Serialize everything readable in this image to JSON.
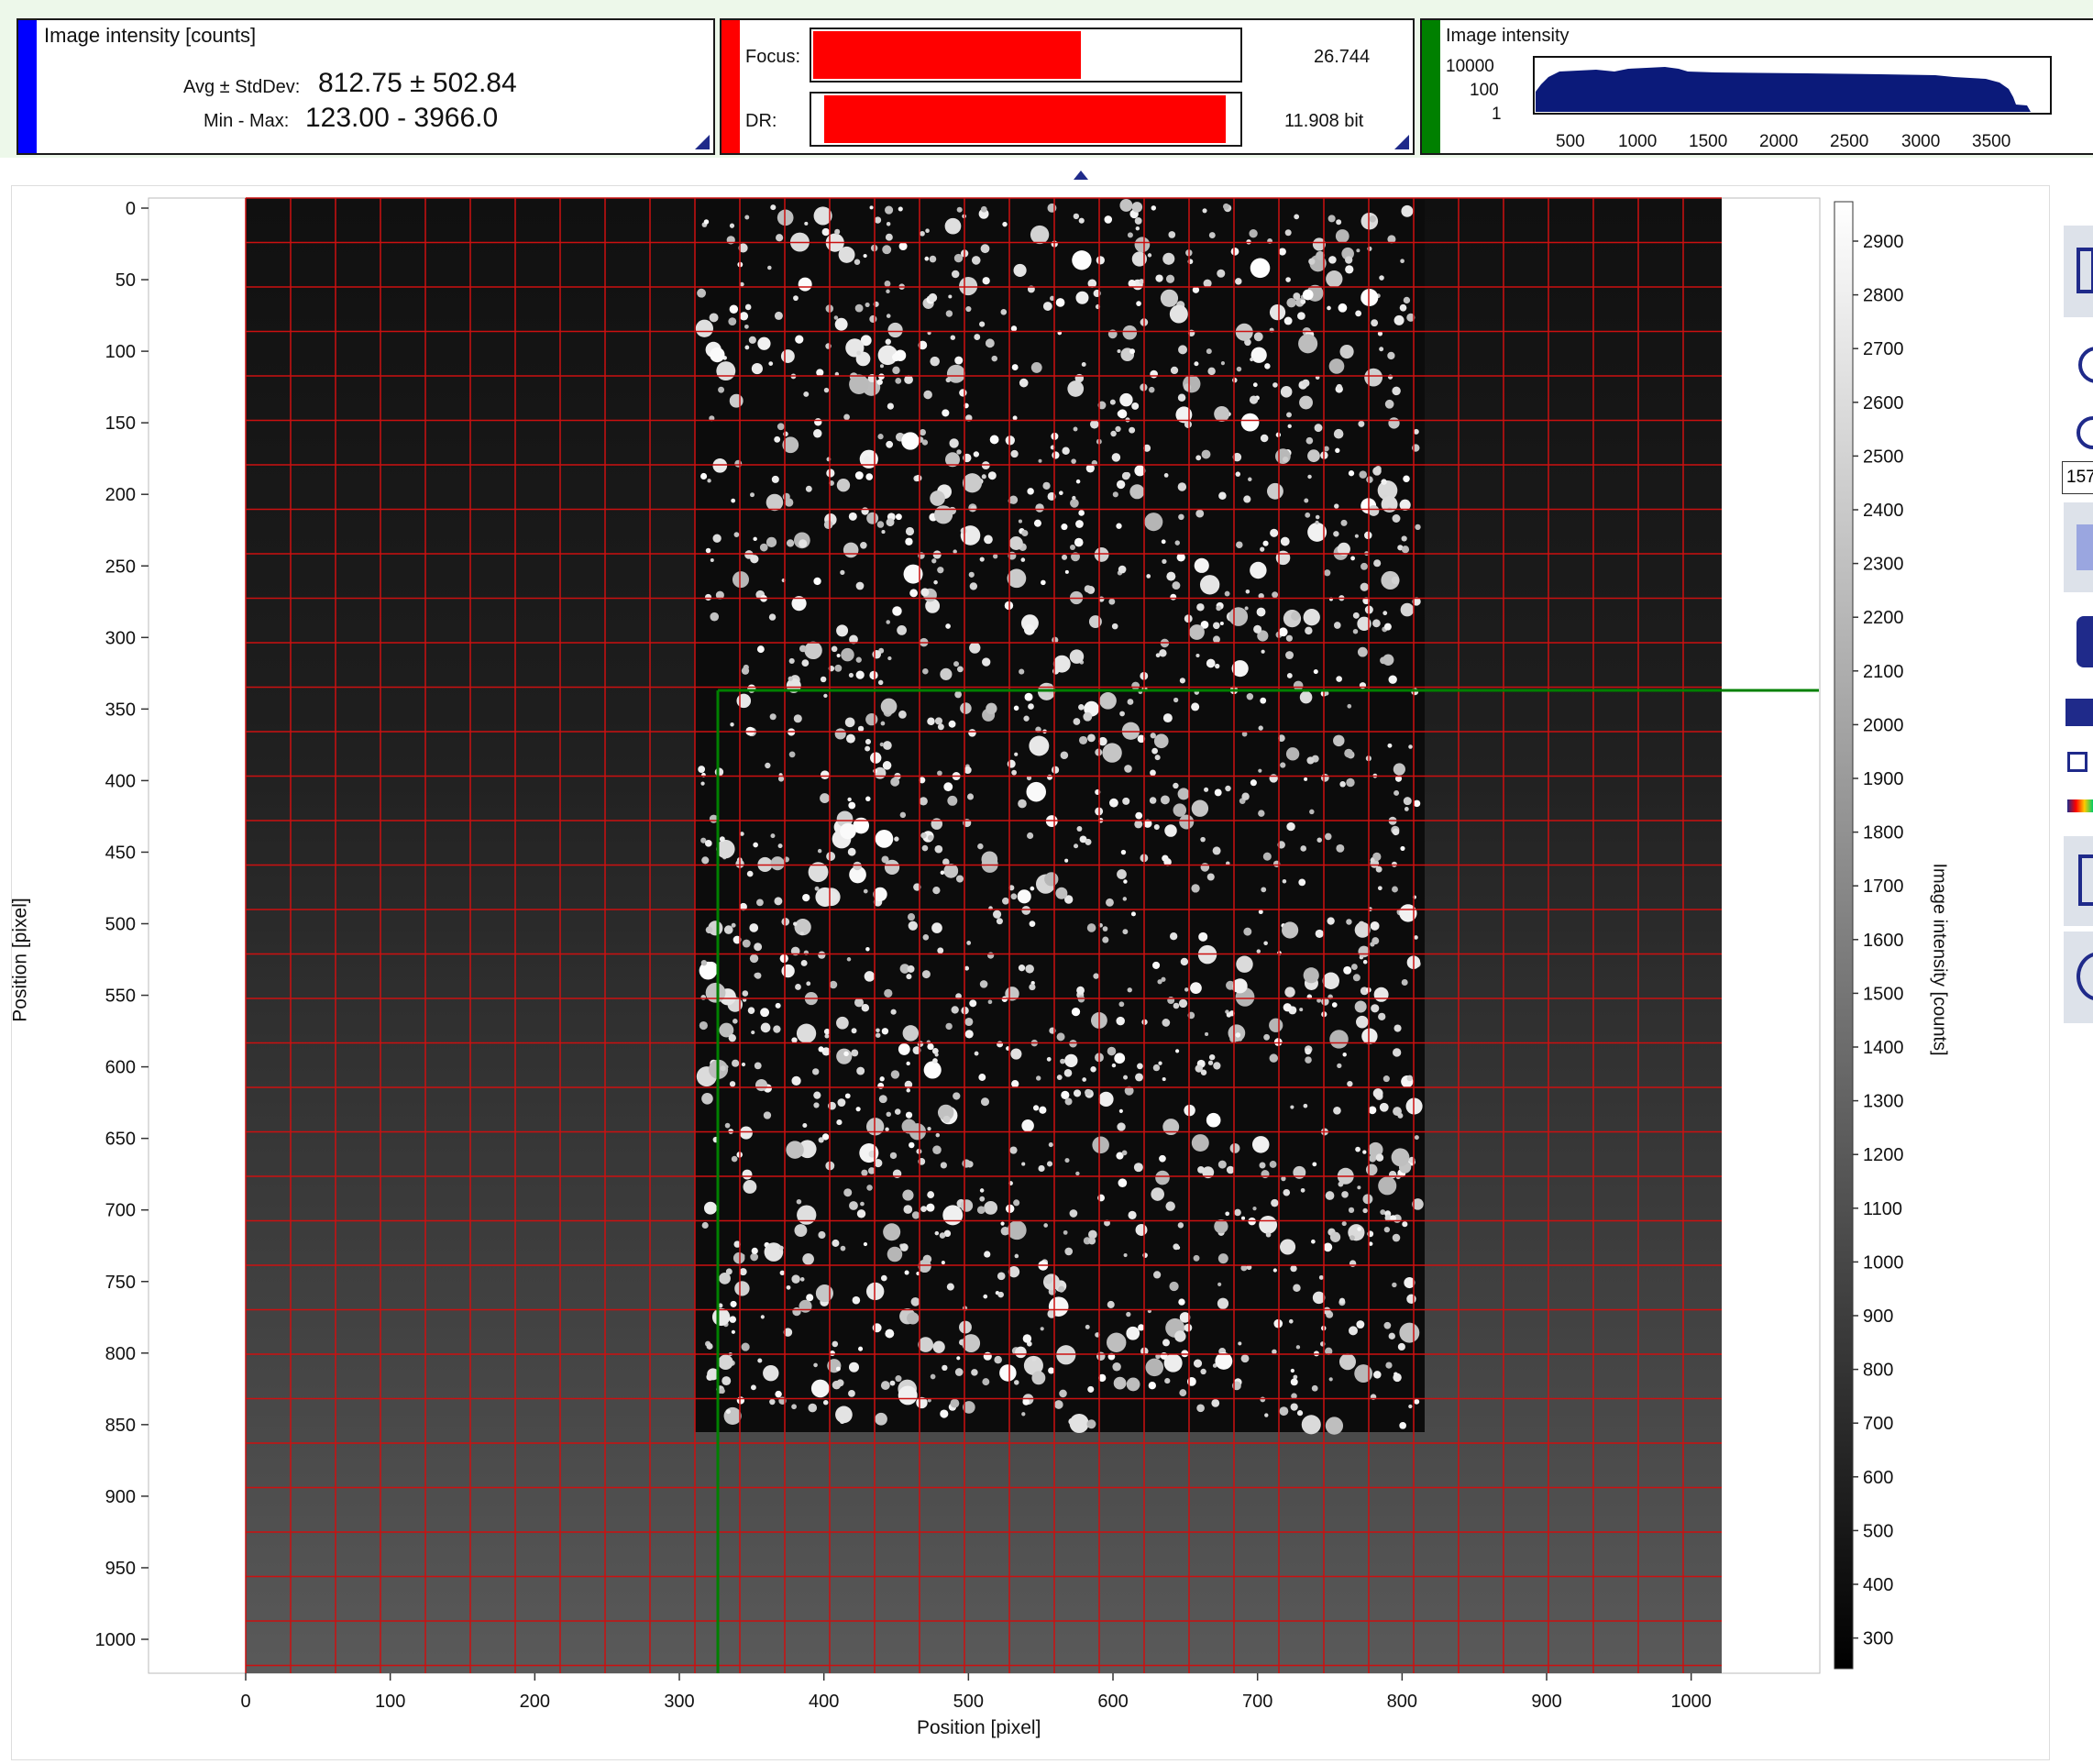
{
  "stats_panel": {
    "title": "Image intensity [counts]",
    "avg_label": "Avg ± StdDev:",
    "avg_value": "812.75 ± 502.84",
    "minmax_label": "Min - Max:",
    "minmax_value": "123.00 - 3966.0",
    "accent_color": "#0000ff"
  },
  "focus_panel": {
    "focus_label": "Focus:",
    "focus_value": "26.744",
    "focus_fraction": 0.63,
    "dr_label": "DR:",
    "dr_value": "11.908 bit",
    "dr_fraction": 0.97,
    "accent_color": "#ff0000"
  },
  "histogram_panel": {
    "title": "Image intensity",
    "y_ticks": [
      "10000",
      "100",
      "1"
    ],
    "x_ticks": [
      "500",
      "1000",
      "1500",
      "2000",
      "2500",
      "3000",
      "3500"
    ],
    "accent_color": "#008000",
    "fill_color": "#0b1a7a"
  },
  "main_plot": {
    "x_axis_label": "Position [pixel]",
    "y_axis_label": "Position [pixel]",
    "x_ticks": [
      "0",
      "100",
      "200",
      "300",
      "400",
      "500",
      "600",
      "700",
      "800",
      "900",
      "1000"
    ],
    "y_ticks": [
      "0",
      "50",
      "100",
      "150",
      "200",
      "250",
      "300",
      "350",
      "400",
      "450",
      "500",
      "550",
      "600",
      "650",
      "700",
      "750",
      "800",
      "850",
      "900",
      "950",
      "1000"
    ],
    "colorbar_label": "Image intensity [counts]",
    "colorbar_ticks": [
      "2900",
      "2800",
      "2700",
      "2600",
      "2500",
      "2400",
      "2300",
      "2200",
      "2100",
      "2000",
      "1900",
      "1800",
      "1700",
      "1600",
      "1500",
      "1400",
      "1300",
      "1200",
      "1100",
      "1000",
      "900",
      "800",
      "700",
      "600",
      "500",
      "400",
      "300"
    ],
    "grid_color": "#cc1010",
    "crosshair_color": "#008000",
    "crosshair_x": 327,
    "crosshair_y": 343
  },
  "sidebar": {
    "zoom_value": "157"
  }
}
